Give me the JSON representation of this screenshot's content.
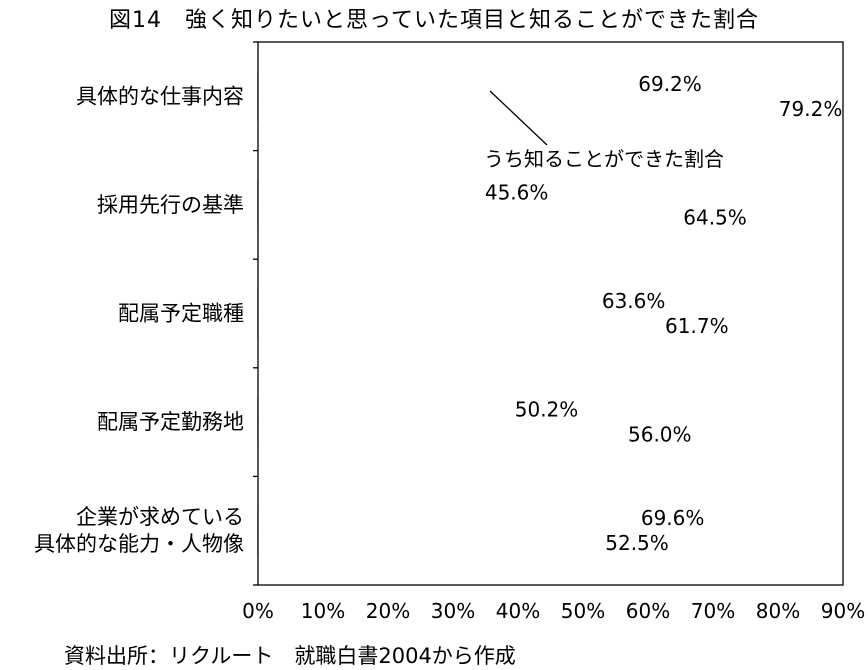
{
  "chart_data": {
    "type": "bar",
    "orientation": "horizontal",
    "title": "図14　強く知りたいと思っていた項目と知ることができた割合",
    "categories": [
      [
        "具体的な仕事内容"
      ],
      [
        "採用先行の基準"
      ],
      [
        "配属予定職種"
      ],
      [
        "配属予定勤務地"
      ],
      [
        "企業が求めている",
        "具体的な能力・人物像"
      ]
    ],
    "series": [
      {
        "name": "うち知ることができた割合",
        "color": "#ececec",
        "values": [
          69.2,
          45.6,
          63.6,
          50.2,
          69.6
        ],
        "labels": [
          "69.2%",
          "45.6%",
          "63.6%",
          "50.2%",
          "69.6%"
        ]
      },
      {
        "color": "#a6a6a6",
        "values": [
          79.2,
          64.5,
          61.7,
          56.0,
          52.5
        ],
        "labels": [
          "79.2%",
          "64.5%",
          "61.7%",
          "56.0%",
          "52.5%"
        ]
      }
    ],
    "xlim": [
      0,
      90
    ],
    "xticks": [
      "0%",
      "10%",
      "20%",
      "30%",
      "40%",
      "50%",
      "60%",
      "70%",
      "80%",
      "90%"
    ],
    "grid": "vertical dashed",
    "annotation": "うち知ることができた割合"
  },
  "source": "資料出所：リクルート　就職白書2004から作成"
}
